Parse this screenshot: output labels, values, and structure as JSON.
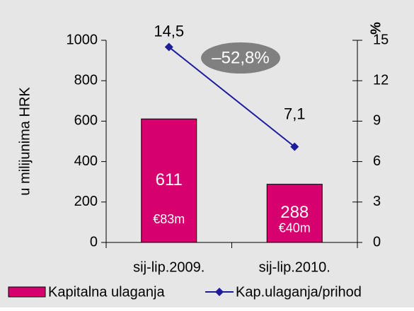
{
  "chart_data": {
    "type": "bar-line",
    "categories": [
      "sij-lip.2009.",
      "sij-lip.2010."
    ],
    "series": [
      {
        "name": "Kapitalna ulaganja",
        "type": "bar",
        "color": "#d6006e",
        "values": [
          611,
          288
        ],
        "value_sublabels": [
          "€83m",
          "€40m"
        ]
      },
      {
        "name": "Kap.ulaganja/prihod",
        "type": "line",
        "axis": "y2",
        "color": "#1c1c9c",
        "values": [
          14.5,
          7.1
        ],
        "value_labels": [
          "14,5",
          "7,1"
        ]
      }
    ],
    "ylabel": "u milijunima HRK",
    "y2label": "%",
    "ylim": [
      0,
      1000
    ],
    "yticks": [
      0,
      200,
      400,
      600,
      800,
      1000
    ],
    "y2lim": [
      0,
      15
    ],
    "y2ticks": [
      0,
      3,
      6,
      9,
      12,
      15
    ],
    "annotation": "–52,8%",
    "background": "#e6e6e6"
  }
}
